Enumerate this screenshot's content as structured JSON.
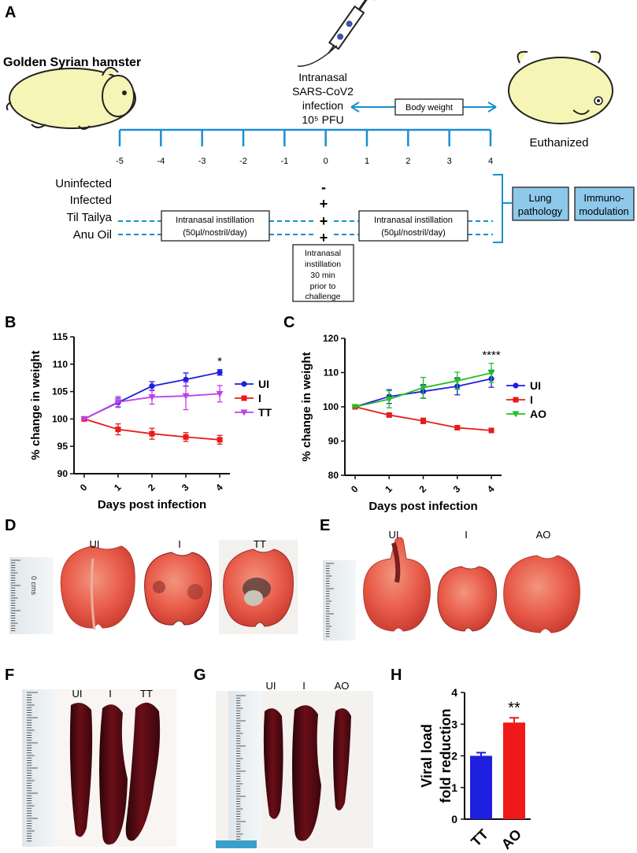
{
  "panels": {
    "A": "A",
    "B": "B",
    "C": "C",
    "D": "D",
    "E": "E",
    "F": "F",
    "G": "G",
    "H": "H"
  },
  "schematic": {
    "hamster_title": "Golden Syrian hamster",
    "infection_lines": [
      "Intranasal",
      "SARS-CoV2",
      "infection",
      "10⁵ PFU"
    ],
    "body_weight_label": "Body weight",
    "euthanized_label": "Euthanized",
    "timeline_ticks": [
      "-5",
      "-4",
      "-3",
      "-2",
      "-1",
      "0",
      "1",
      "2",
      "3",
      "4"
    ],
    "groups": [
      "Uninfected",
      "Infected",
      "Til Tailya",
      "Anu Oil"
    ],
    "group_signs": [
      "-",
      "+",
      "+",
      "+"
    ],
    "instillation_box_left": [
      "Intranasal instillation",
      "(50µl/nostril/day)"
    ],
    "instillation_box_right": [
      "Intranasal instillation",
      "(50µl/nostril/day)"
    ],
    "prior_box": [
      "Intranasal",
      "instillation",
      "30 min",
      "prior to",
      "challenge"
    ],
    "outcome_boxes": [
      [
        "Lung",
        "pathology"
      ],
      [
        "Immuno-",
        "modulation"
      ]
    ],
    "colors": {
      "timeline": "#1a8fd0",
      "outcome_fill": "#8ec9eb",
      "hamster_fill": "#f7f5b5"
    }
  },
  "chart_data": [
    {
      "panel": "B",
      "type": "line",
      "title": "",
      "xlabel": "Days post infection",
      "ylabel": "% change in weight",
      "x": [
        0,
        1,
        2,
        3,
        4
      ],
      "xlim": [
        -0.3,
        4.3
      ],
      "ylim": [
        90,
        115
      ],
      "yticks": [
        90,
        95,
        100,
        105,
        110,
        115
      ],
      "series": [
        {
          "name": "UI",
          "color": "#1f1fe0",
          "marker": "circle",
          "values": [
            100,
            103,
            106,
            107.2,
            108.5
          ],
          "err": [
            0,
            0.8,
            0.8,
            1.2,
            0.5
          ]
        },
        {
          "name": "I",
          "color": "#e81b1b",
          "marker": "square",
          "values": [
            100,
            98.1,
            97.3,
            96.7,
            96.2
          ],
          "err": [
            0,
            1.0,
            1.0,
            0.8,
            0.8
          ]
        },
        {
          "name": "TT",
          "color": "#c040e8",
          "marker": "triangle-down",
          "values": [
            100,
            103.1,
            104,
            104.2,
            104.6
          ],
          "err": [
            0,
            1.0,
            1.3,
            2.5,
            1.5
          ]
        }
      ],
      "annotations": [
        {
          "text": "*",
          "x": 4
        }
      ]
    },
    {
      "panel": "C",
      "type": "line",
      "title": "",
      "xlabel": "Days post infection",
      "ylabel": "% change in weight",
      "x": [
        0,
        1,
        2,
        3,
        4
      ],
      "xlim": [
        -0.3,
        4.3
      ],
      "ylim": [
        80,
        120
      ],
      "yticks": [
        80,
        90,
        100,
        110,
        120
      ],
      "series": [
        {
          "name": "UI",
          "color": "#1f1fe0",
          "marker": "circle",
          "values": [
            100,
            103,
            104.5,
            106,
            108.2
          ],
          "err": [
            0,
            2.0,
            2.0,
            2.5,
            2.5
          ]
        },
        {
          "name": "I",
          "color": "#e81b1b",
          "marker": "square",
          "values": [
            100,
            97.6,
            95.9,
            93.9,
            93.1
          ],
          "err": [
            0,
            0.5,
            0.8,
            0.5,
            0.4
          ]
        },
        {
          "name": "AO",
          "color": "#22c022",
          "marker": "triangle-down",
          "values": [
            100,
            102.2,
            105.6,
            107.6,
            109.9
          ],
          "err": [
            0,
            2.5,
            3.0,
            2.5,
            2.8
          ]
        }
      ],
      "annotations": [
        {
          "text": "****",
          "x": 4
        }
      ]
    },
    {
      "panel": "H",
      "type": "bar",
      "title": "",
      "xlabel": "",
      "ylabel": "Viral load\nfold reduction",
      "categories": [
        "TT",
        "AO"
      ],
      "values": [
        2.0,
        3.05
      ],
      "err": [
        0.1,
        0.15
      ],
      "colors": [
        "#1f1fe0",
        "#f01818"
      ],
      "ylim": [
        0,
        4
      ],
      "yticks": [
        0,
        1,
        2,
        3,
        4
      ],
      "annotations": [
        {
          "text": "**",
          "category": "AO"
        }
      ]
    }
  ],
  "photos": {
    "D": [
      "UI",
      "I",
      "TT"
    ],
    "E": [
      "UI",
      "I",
      "AO"
    ],
    "F": [
      "UI",
      "I",
      "TT"
    ],
    "G": [
      "UI",
      "I",
      "AO"
    ],
    "ruler_text": "0 cms"
  }
}
